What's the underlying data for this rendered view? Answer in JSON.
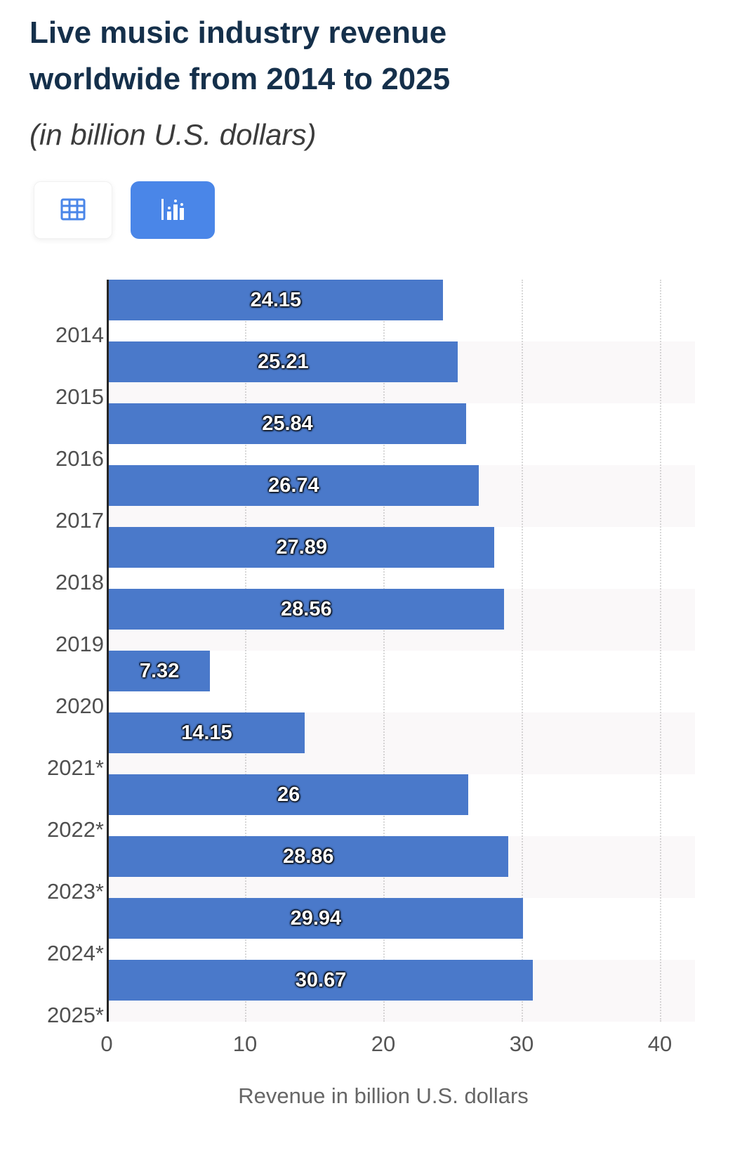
{
  "header": {
    "title_line1": "Live music industry revenue",
    "title_line2": "worldwide from 2014 to 2025",
    "subtitle": "(in billion U.S. dollars)"
  },
  "toolbar": {
    "table_view_icon": "table-grid-icon",
    "chart_view_icon": "bar-chart-icon",
    "active_view": "chart"
  },
  "colors": {
    "bar": "#4a79ca",
    "active_button": "#4a86e8",
    "icon_blue": "#4a86e8",
    "title_text": "#15304b"
  },
  "chart_data": {
    "type": "bar",
    "orientation": "horizontal",
    "title": "Live music industry revenue worldwide from 2014 to 2025 (in billion U.S. dollars)",
    "categories": [
      "2014",
      "2015",
      "2016",
      "2017",
      "2018",
      "2019",
      "2020",
      "2021*",
      "2022*",
      "2023*",
      "2024*",
      "2025*"
    ],
    "values": [
      24.15,
      25.21,
      25.84,
      26.74,
      27.89,
      28.56,
      7.32,
      14.15,
      26,
      28.86,
      29.94,
      30.67
    ],
    "value_labels": [
      "24.15",
      "25.21",
      "25.84",
      "26.74",
      "27.89",
      "28.56",
      "7.32",
      "14.15",
      "26",
      "28.86",
      "29.94",
      "30.67"
    ],
    "xlabel": "Revenue in billion U.S. dollars",
    "x_ticks": [
      0,
      10,
      20,
      30,
      40
    ],
    "xlim": [
      0,
      40
    ],
    "grid": true,
    "legend": false
  }
}
